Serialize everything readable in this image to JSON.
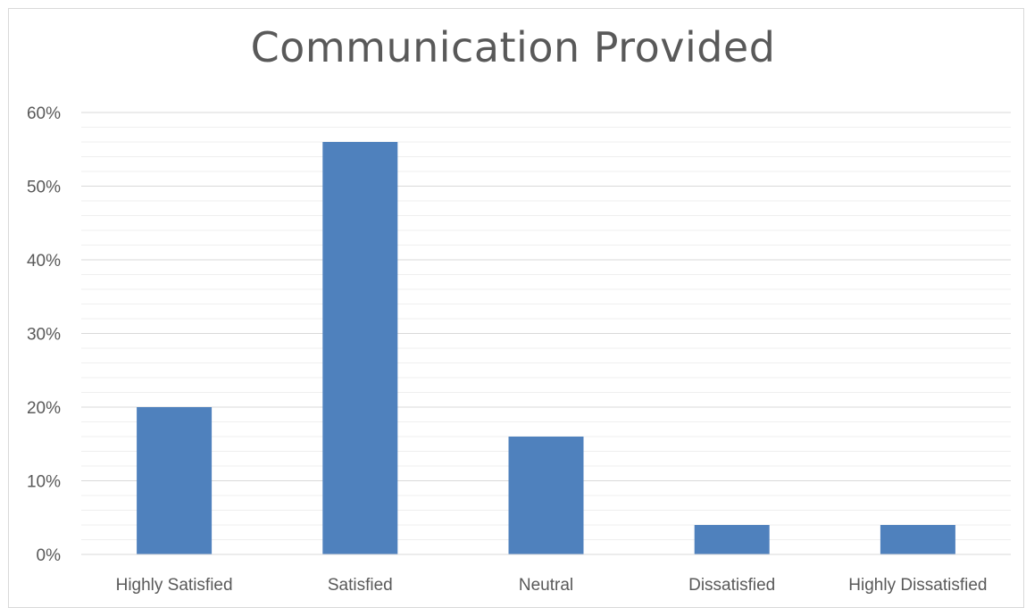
{
  "chart_data": {
    "type": "bar",
    "title": "Communication Provided",
    "categories": [
      "Highly Satisfied",
      "Satisfied",
      "Neutral",
      "Dissatisfied",
      "Highly Dissatisfied"
    ],
    "values": [
      20,
      56,
      16,
      4,
      4
    ],
    "unit": "%",
    "ylim": [
      0,
      60
    ],
    "y_ticks": [
      "0%",
      "10%",
      "20%",
      "30%",
      "40%",
      "50%",
      "60%"
    ],
    "y_tick_values": [
      0,
      10,
      20,
      30,
      40,
      50,
      60
    ],
    "minor_gridlines": true,
    "grid": true,
    "legend": "none",
    "bar_color": "#4f81bd",
    "gridline_color": "#d9d9d9"
  }
}
